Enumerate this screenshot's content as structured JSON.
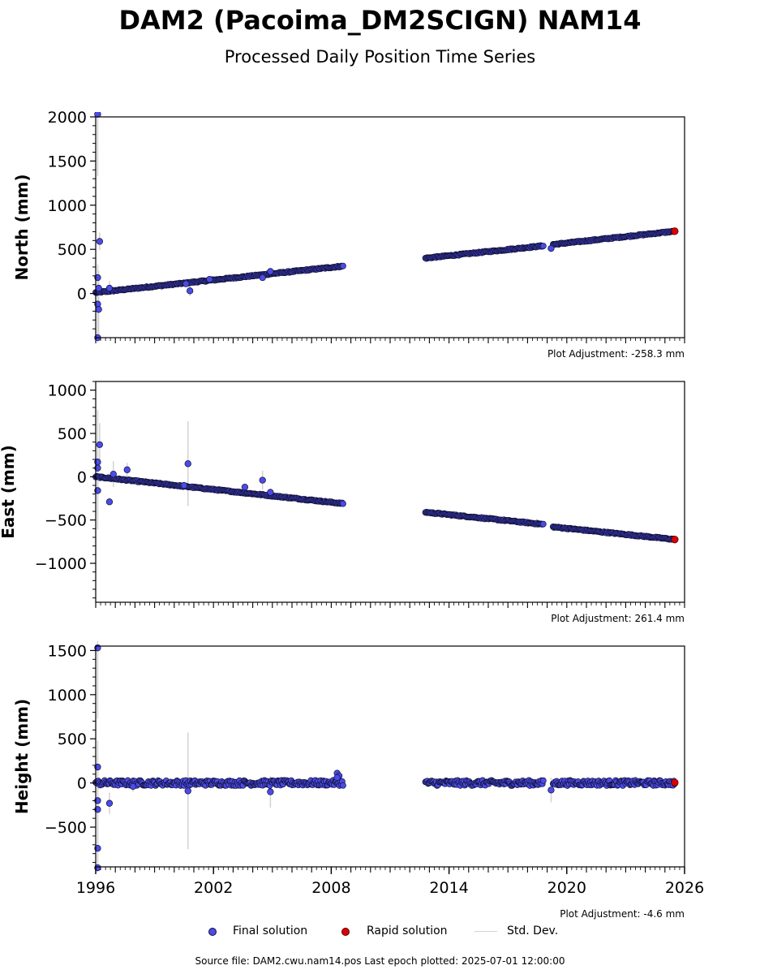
{
  "title": "DAM2 (Pacoima_DM2SCIGN) NAM14",
  "subtitle": "Processed Daily Position Time Series",
  "legend": {
    "final": "Final solution",
    "rapid": "Rapid solution",
    "std": "Std. Dev."
  },
  "footer": "Source file: DAM2.cwu.nam14.pos  Last epoch plotted: 2025-07-01 12:00:00",
  "colors": {
    "final": "#4b4bea",
    "rapid": "#dd0000",
    "edge": "#111133",
    "stddev": "#d3d3d3"
  },
  "chart_data": [
    {
      "type": "scatter",
      "ylabel": "North (mm)",
      "adjustment": "Plot Adjustment: -258.3 mm",
      "xlim": [
        1996,
        2026
      ],
      "ylim": [
        -500,
        2000
      ],
      "yticks": [
        0,
        500,
        1000,
        1500,
        2000
      ],
      "ytick_labels": [
        "0",
        "500",
        "1000",
        "1500",
        "2000"
      ],
      "xtick_labels_shown": false,
      "segments": [
        {
          "x_start": 1996.0,
          "x_end": 2008.6,
          "y_start": 10,
          "y_end": 310
        },
        {
          "x_start": 2012.8,
          "x_end": 2018.8,
          "y_start": 400,
          "y_end": 540
        },
        {
          "x_start": 2019.3,
          "x_end": 2025.5,
          "y_start": 555,
          "y_end": 705
        }
      ],
      "outliers": [
        {
          "x": 1996.1,
          "y": 2030,
          "err": 700
        },
        {
          "x": 1996.2,
          "y": 590,
          "err": 100
        },
        {
          "x": 1996.1,
          "y": 180,
          "err": 150
        },
        {
          "x": 1996.15,
          "y": 60,
          "err": 200
        },
        {
          "x": 1996.1,
          "y": -120,
          "err": 350
        },
        {
          "x": 1996.15,
          "y": -180,
          "err": 300
        },
        {
          "x": 1996.1,
          "y": -500,
          "err": 200
        },
        {
          "x": 1996.7,
          "y": 60,
          "err": 80
        },
        {
          "x": 2000.6,
          "y": 110,
          "err": 30
        },
        {
          "x": 2000.8,
          "y": 30,
          "err": 60
        },
        {
          "x": 2001.8,
          "y": 160,
          "err": 20
        },
        {
          "x": 2004.5,
          "y": 180,
          "err": 30
        },
        {
          "x": 2004.9,
          "y": 250,
          "err": 30
        },
        {
          "x": 2019.2,
          "y": 510,
          "err": 30
        }
      ],
      "rapid": [
        {
          "x": 2025.5,
          "y": 705
        }
      ]
    },
    {
      "type": "scatter",
      "ylabel": "East (mm)",
      "adjustment": "Plot Adjustment: 261.4 mm",
      "xlim": [
        1996,
        2026
      ],
      "ylim": [
        -1450,
        1100
      ],
      "yticks": [
        -1000,
        -500,
        0,
        500,
        1000
      ],
      "ytick_labels": [
        "−1000",
        "−500",
        "0",
        "500",
        "1000"
      ],
      "xtick_labels_shown": false,
      "segments": [
        {
          "x_start": 1996.0,
          "x_end": 2008.6,
          "y_start": 0,
          "y_end": -310
        },
        {
          "x_start": 2012.8,
          "x_end": 2018.8,
          "y_start": -410,
          "y_end": -550
        },
        {
          "x_start": 2019.3,
          "x_end": 2025.5,
          "y_start": -580,
          "y_end": -725
        }
      ],
      "outliers": [
        {
          "x": 1996.1,
          "y": 170,
          "err": 600
        },
        {
          "x": 1996.2,
          "y": 370,
          "err": 250
        },
        {
          "x": 1996.1,
          "y": 100,
          "err": 300
        },
        {
          "x": 1996.1,
          "y": -160,
          "err": 450
        },
        {
          "x": 1996.7,
          "y": -290,
          "err": 40
        },
        {
          "x": 1996.9,
          "y": 30,
          "err": 150
        },
        {
          "x": 1997.6,
          "y": 80,
          "err": 80
        },
        {
          "x": 2000.5,
          "y": -100,
          "err": 40
        },
        {
          "x": 2000.7,
          "y": 150,
          "err": 490
        },
        {
          "x": 2003.6,
          "y": -120,
          "err": 30
        },
        {
          "x": 2004.5,
          "y": -40,
          "err": 110
        },
        {
          "x": 2004.9,
          "y": -180,
          "err": 40
        }
      ],
      "rapid": [
        {
          "x": 2025.5,
          "y": -725
        }
      ]
    },
    {
      "type": "scatter",
      "ylabel": "Height (mm)",
      "adjustment": "Plot Adjustment: -4.6 mm",
      "xlim": [
        1996,
        2026
      ],
      "ylim": [
        -950,
        1550
      ],
      "yticks": [
        -500,
        0,
        500,
        1000,
        1500
      ],
      "ytick_labels": [
        "−500",
        "0",
        "500",
        "1000",
        "1500"
      ],
      "xticks": [
        1996,
        2002,
        2008,
        2014,
        2020,
        2026
      ],
      "xtick_labels": [
        "1996",
        "2002",
        "2008",
        "2014",
        "2020",
        "2026"
      ],
      "xtick_labels_shown": true,
      "segments": [
        {
          "x_start": 1996.0,
          "x_end": 2008.6,
          "y_start": 0,
          "y_end": 0
        },
        {
          "x_start": 2012.8,
          "x_end": 2018.8,
          "y_start": 0,
          "y_end": 0
        },
        {
          "x_start": 2019.3,
          "x_end": 2025.5,
          "y_start": 0,
          "y_end": 0
        }
      ],
      "outliers": [
        {
          "x": 1996.1,
          "y": 1530,
          "err": 800
        },
        {
          "x": 1996.1,
          "y": 180,
          "err": 300
        },
        {
          "x": 1996.1,
          "y": -200,
          "err": 500
        },
        {
          "x": 1996.1,
          "y": -300,
          "err": 400
        },
        {
          "x": 1996.1,
          "y": -740,
          "err": 300
        },
        {
          "x": 1996.1,
          "y": -960,
          "err": 200
        },
        {
          "x": 1996.7,
          "y": -230,
          "err": 120
        },
        {
          "x": 1997.9,
          "y": -40,
          "err": 60
        },
        {
          "x": 2000.7,
          "y": -90,
          "err": 660
        },
        {
          "x": 2004.9,
          "y": -100,
          "err": 180
        },
        {
          "x": 2008.3,
          "y": 110,
          "err": 40
        },
        {
          "x": 2008.4,
          "y": 80,
          "err": 40
        },
        {
          "x": 2008.3,
          "y": 60,
          "err": 40
        },
        {
          "x": 2019.2,
          "y": -80,
          "err": 140
        }
      ],
      "rapid": [
        {
          "x": 2025.5,
          "y": 5
        }
      ]
    }
  ]
}
